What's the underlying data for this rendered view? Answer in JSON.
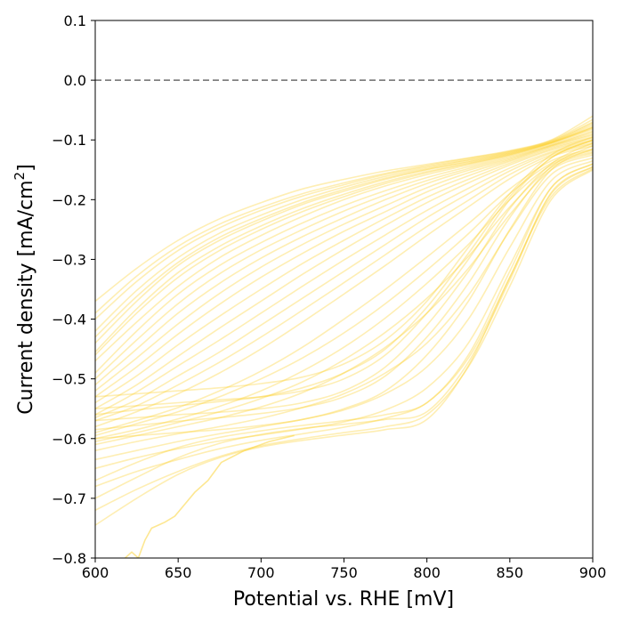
{
  "chart_data": {
    "type": "line",
    "title": "",
    "xlabel": "Potential vs. RHE [mV]",
    "ylabel_main": "Current density [mA/cm",
    "ylabel_sup": "2",
    "ylabel_tail": "]",
    "xlim": [
      600,
      900
    ],
    "ylim": [
      -0.8,
      0.1
    ],
    "xticks": [
      600,
      650,
      700,
      750,
      800,
      850,
      900
    ],
    "xtick_labels": [
      "600",
      "650",
      "700",
      "750",
      "800",
      "850",
      "900"
    ],
    "yticks": [
      0.1,
      0.0,
      -0.1,
      -0.2,
      -0.3,
      -0.4,
      -0.5,
      -0.6,
      -0.7,
      -0.8
    ],
    "ytick_labels": [
      "0.1",
      "0.0",
      "−0.1",
      "−0.2",
      "−0.3",
      "−0.4",
      "−0.5",
      "−0.6",
      "−0.7",
      "−0.8"
    ],
    "reference_line": {
      "y": 0.0,
      "style": "dashed",
      "color": "#808080"
    },
    "series_color": "#FCCF24",
    "series_opacity": 0.35,
    "grid": false,
    "legend": "none",
    "x": [
      600,
      625,
      650,
      675,
      700,
      725,
      750,
      775,
      800,
      825,
      850,
      875,
      900
    ],
    "envelope": {
      "upper": [
        -0.37,
        -0.31,
        -0.265,
        -0.23,
        -0.2,
        -0.175,
        -0.16,
        -0.145,
        -0.135,
        -0.125,
        -0.115,
        -0.095,
        -0.05
      ],
      "lower": [
        -0.745,
        -0.7,
        -0.66,
        -0.63,
        -0.61,
        -0.6,
        -0.59,
        -0.585,
        -0.57,
        -0.48,
        -0.33,
        -0.2,
        -0.15
      ]
    },
    "series": [
      {
        "values": [
          -0.37,
          -0.315,
          -0.268,
          -0.232,
          -0.205,
          -0.182,
          -0.166,
          -0.152,
          -0.141,
          -0.13,
          -0.118,
          -0.1,
          -0.06
        ]
      },
      {
        "values": [
          -0.4,
          -0.337,
          -0.285,
          -0.247,
          -0.218,
          -0.194,
          -0.175,
          -0.158,
          -0.145,
          -0.133,
          -0.12,
          -0.102,
          -0.07
        ]
      },
      {
        "values": [
          -0.43,
          -0.362,
          -0.305,
          -0.263,
          -0.232,
          -0.205,
          -0.183,
          -0.164,
          -0.149,
          -0.136,
          -0.122,
          -0.104,
          -0.075
        ]
      },
      {
        "values": [
          -0.46,
          -0.39,
          -0.33,
          -0.285,
          -0.25,
          -0.22,
          -0.195,
          -0.173,
          -0.155,
          -0.14,
          -0.125,
          -0.105,
          -0.08
        ]
      },
      {
        "values": [
          -0.49,
          -0.42,
          -0.358,
          -0.31,
          -0.272,
          -0.239,
          -0.21,
          -0.185,
          -0.163,
          -0.145,
          -0.128,
          -0.108,
          -0.085
        ]
      },
      {
        "values": [
          -0.51,
          -0.45,
          -0.39,
          -0.34,
          -0.298,
          -0.262,
          -0.23,
          -0.2,
          -0.173,
          -0.151,
          -0.132,
          -0.11,
          -0.09
        ]
      },
      {
        "values": [
          -0.53,
          -0.48,
          -0.425,
          -0.375,
          -0.33,
          -0.29,
          -0.253,
          -0.22,
          -0.187,
          -0.16,
          -0.136,
          -0.113,
          -0.095
        ]
      },
      {
        "values": [
          -0.55,
          -0.51,
          -0.462,
          -0.415,
          -0.37,
          -0.325,
          -0.283,
          -0.243,
          -0.205,
          -0.172,
          -0.142,
          -0.117,
          -0.1
        ]
      },
      {
        "values": [
          -0.565,
          -0.535,
          -0.495,
          -0.455,
          -0.41,
          -0.365,
          -0.32,
          -0.275,
          -0.23,
          -0.19,
          -0.152,
          -0.122,
          -0.105
        ]
      },
      {
        "values": [
          -0.58,
          -0.555,
          -0.525,
          -0.49,
          -0.45,
          -0.405,
          -0.358,
          -0.31,
          -0.26,
          -0.212,
          -0.165,
          -0.128,
          -0.11
        ]
      },
      {
        "values": [
          -0.59,
          -0.57,
          -0.548,
          -0.52,
          -0.487,
          -0.447,
          -0.4,
          -0.35,
          -0.296,
          -0.24,
          -0.182,
          -0.135,
          -0.115
        ]
      },
      {
        "values": [
          -0.6,
          -0.585,
          -0.567,
          -0.546,
          -0.52,
          -0.487,
          -0.447,
          -0.398,
          -0.34,
          -0.275,
          -0.2,
          -0.142,
          -0.12
        ]
      },
      {
        "values": [
          -0.61,
          -0.595,
          -0.58,
          -0.565,
          -0.547,
          -0.523,
          -0.49,
          -0.447,
          -0.39,
          -0.315,
          -0.225,
          -0.15,
          -0.125
        ]
      },
      {
        "values": [
          -0.62,
          -0.605,
          -0.592,
          -0.58,
          -0.566,
          -0.548,
          -0.525,
          -0.49,
          -0.44,
          -0.36,
          -0.252,
          -0.158,
          -0.13
        ]
      },
      {
        "values": [
          -0.635,
          -0.62,
          -0.605,
          -0.592,
          -0.58,
          -0.568,
          -0.552,
          -0.525,
          -0.48,
          -0.4,
          -0.28,
          -0.168,
          -0.135
        ]
      },
      {
        "values": [
          -0.65,
          -0.632,
          -0.617,
          -0.604,
          -0.594,
          -0.584,
          -0.572,
          -0.552,
          -0.515,
          -0.44,
          -0.31,
          -0.18,
          -0.14
        ]
      },
      {
        "values": [
          -0.68,
          -0.655,
          -0.635,
          -0.617,
          -0.603,
          -0.592,
          -0.581,
          -0.566,
          -0.54,
          -0.465,
          -0.33,
          -0.19,
          -0.145
        ]
      },
      {
        "values": [
          -0.72,
          -0.685,
          -0.655,
          -0.63,
          -0.612,
          -0.6,
          -0.59,
          -0.58,
          -0.56,
          -0.48,
          -0.345,
          -0.2,
          -0.15
        ]
      },
      {
        "values": [
          -0.745,
          -0.7,
          -0.66,
          -0.632,
          -0.614,
          -0.603,
          -0.594,
          -0.585,
          -0.568,
          -0.478,
          -0.33,
          -0.195,
          -0.148
        ]
      },
      {
        "values": [
          -0.55,
          -0.545,
          -0.54,
          -0.535,
          -0.53,
          -0.52,
          -0.5,
          -0.46,
          -0.39,
          -0.3,
          -0.2,
          -0.13,
          -0.1
        ]
      },
      {
        "values": [
          -0.57,
          -0.565,
          -0.56,
          -0.556,
          -0.55,
          -0.54,
          -0.52,
          -0.48,
          -0.41,
          -0.32,
          -0.215,
          -0.14,
          -0.105
        ]
      },
      {
        "values": [
          -0.585,
          -0.578,
          -0.571,
          -0.565,
          -0.558,
          -0.548,
          -0.53,
          -0.495,
          -0.43,
          -0.34,
          -0.23,
          -0.145,
          -0.11
        ]
      },
      {
        "values": [
          -0.53,
          -0.525,
          -0.52,
          -0.515,
          -0.508,
          -0.497,
          -0.475,
          -0.435,
          -0.37,
          -0.28,
          -0.19,
          -0.125,
          -0.095
        ]
      },
      {
        "values": [
          -0.56,
          -0.552,
          -0.545,
          -0.538,
          -0.53,
          -0.515,
          -0.49,
          -0.45,
          -0.38,
          -0.29,
          -0.195,
          -0.13,
          -0.1
        ]
      },
      {
        "values": [
          -0.6,
          -0.595,
          -0.59,
          -0.585,
          -0.578,
          -0.568,
          -0.55,
          -0.52,
          -0.46,
          -0.37,
          -0.25,
          -0.15,
          -0.115
        ]
      },
      {
        "values": [
          -0.67,
          -0.64,
          -0.615,
          -0.598,
          -0.587,
          -0.578,
          -0.57,
          -0.56,
          -0.54,
          -0.46,
          -0.32,
          -0.18,
          -0.14
        ]
      },
      {
        "values": [
          -0.7,
          -0.665,
          -0.632,
          -0.608,
          -0.593,
          -0.583,
          -0.576,
          -0.568,
          -0.555,
          -0.472,
          -0.335,
          -0.188,
          -0.145
        ]
      },
      {
        "values": [
          -0.44,
          -0.37,
          -0.31,
          -0.268,
          -0.236,
          -0.208,
          -0.186,
          -0.166,
          -0.15,
          -0.137,
          -0.123,
          -0.104,
          -0.078
        ]
      },
      {
        "values": [
          -0.47,
          -0.405,
          -0.345,
          -0.297,
          -0.26,
          -0.228,
          -0.2,
          -0.177,
          -0.158,
          -0.142,
          -0.126,
          -0.106,
          -0.082
        ]
      },
      {
        "values": [
          -0.5,
          -0.435,
          -0.374,
          -0.324,
          -0.284,
          -0.25,
          -0.219,
          -0.192,
          -0.168,
          -0.148,
          -0.13,
          -0.109,
          -0.087
        ]
      },
      {
        "values": [
          -0.52,
          -0.465,
          -0.408,
          -0.357,
          -0.313,
          -0.275,
          -0.241,
          -0.21,
          -0.18,
          -0.155,
          -0.134,
          -0.111,
          -0.092
        ]
      },
      {
        "values": [
          -0.54,
          -0.495,
          -0.443,
          -0.395,
          -0.35,
          -0.307,
          -0.268,
          -0.231,
          -0.196,
          -0.166,
          -0.139,
          -0.115,
          -0.097
        ]
      },
      {
        "values": [
          -0.56,
          -0.522,
          -0.478,
          -0.435,
          -0.39,
          -0.345,
          -0.301,
          -0.259,
          -0.218,
          -0.181,
          -0.147,
          -0.12,
          -0.102
        ]
      },
      {
        "values": [
          -0.57,
          -0.545,
          -0.51,
          -0.472,
          -0.43,
          -0.385,
          -0.339,
          -0.292,
          -0.245,
          -0.201,
          -0.158,
          -0.125,
          -0.107
        ]
      },
      {
        "values": [
          -0.595,
          -0.575,
          -0.555,
          -0.53,
          -0.5,
          -0.465,
          -0.423,
          -0.374,
          -0.318,
          -0.257,
          -0.19,
          -0.139,
          -0.117
        ]
      },
      {
        "values": [
          -0.605,
          -0.59,
          -0.573,
          -0.555,
          -0.533,
          -0.505,
          -0.468,
          -0.422,
          -0.365,
          -0.295,
          -0.212,
          -0.146,
          -0.122
        ]
      },
      {
        "values": [
          -0.39,
          -0.328,
          -0.278,
          -0.241,
          -0.213,
          -0.19,
          -0.172,
          -0.156,
          -0.143,
          -0.131,
          -0.119,
          -0.101,
          -0.066
        ]
      },
      {
        "values": [
          -0.42,
          -0.352,
          -0.297,
          -0.256,
          -0.226,
          -0.2,
          -0.179,
          -0.161,
          -0.147,
          -0.134,
          -0.121,
          -0.103,
          -0.072
        ]
      },
      {
        "values": [
          -0.455,
          -0.383,
          -0.322,
          -0.278,
          -0.244,
          -0.215,
          -0.191,
          -0.17,
          -0.153,
          -0.139,
          -0.124,
          -0.105,
          -0.079
        ]
      }
    ],
    "noisy_series": [
      {
        "x": [
          612,
          618,
          622,
          626,
          630,
          634,
          638,
          642,
          648,
          654,
          660,
          668,
          676,
          690,
          705,
          720
        ],
        "values": [
          -0.82,
          -0.8,
          -0.79,
          -0.8,
          -0.77,
          -0.75,
          -0.745,
          -0.74,
          -0.73,
          -0.71,
          -0.69,
          -0.67,
          -0.64,
          -0.62,
          -0.605,
          -0.595
        ]
      }
    ]
  }
}
